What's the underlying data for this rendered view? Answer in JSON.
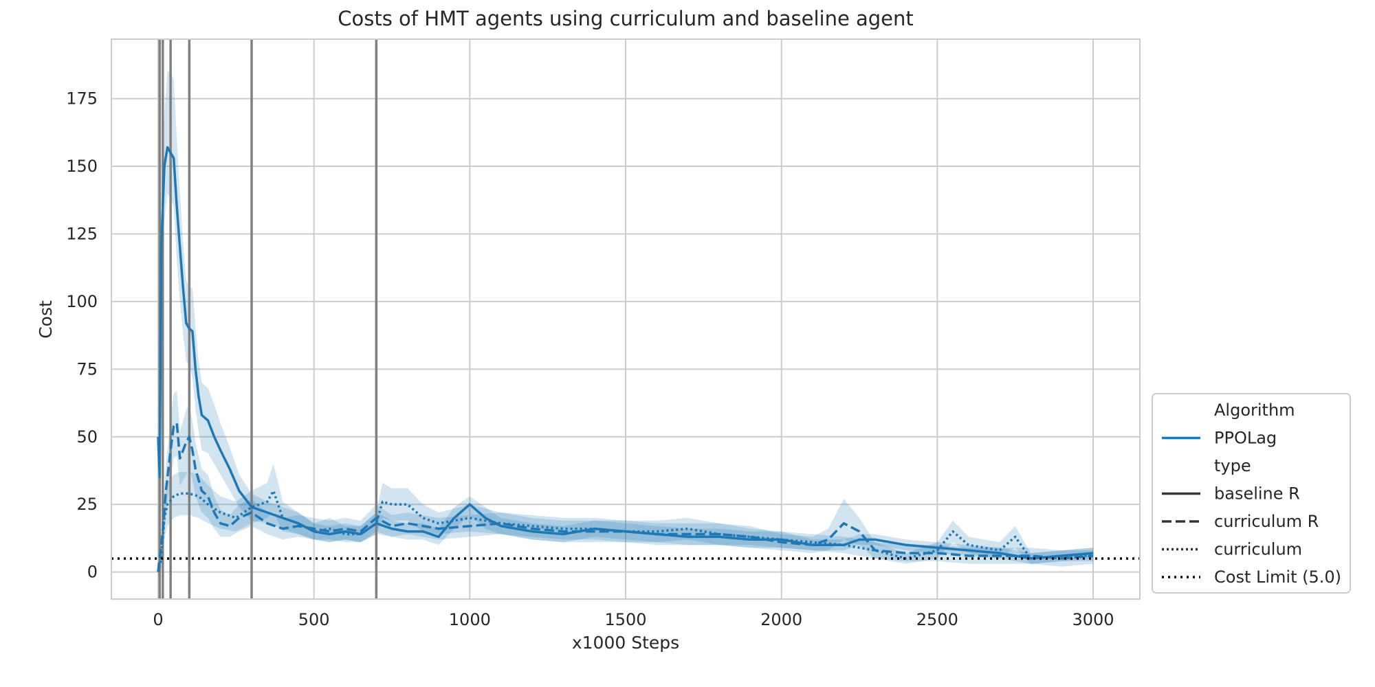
{
  "chart_data": {
    "type": "line",
    "title": "Costs of HMT agents using curriculum and baseline agent",
    "xlabel": "x1000 Steps",
    "ylabel": "Cost",
    "xlim": [
      -150,
      3150
    ],
    "ylim": [
      -10,
      197
    ],
    "xticks": [
      0,
      500,
      1000,
      1500,
      2000,
      2500,
      3000
    ],
    "yticks": [
      0,
      25,
      50,
      75,
      100,
      125,
      150,
      175
    ],
    "grid": true,
    "legend_placement": "lower-right outside",
    "colors": {
      "series": "#1f77b4",
      "band": "#1f77b4",
      "vline": "#808080",
      "limit": "#000000",
      "grid": "#cccccc"
    },
    "legend": {
      "items": [
        {
          "label": "Algorithm",
          "style": "header"
        },
        {
          "label": "PPOLag",
          "style": "solid-blue"
        },
        {
          "label": "type",
          "style": "header"
        },
        {
          "label": "baseline R",
          "style": "solid"
        },
        {
          "label": "curriculum R",
          "style": "dashed"
        },
        {
          "label": "curriculum",
          "style": "dotted"
        },
        {
          "label": "Cost Limit (5.0)",
          "style": "dotted-black"
        }
      ]
    },
    "cost_limit": 5.0,
    "vertical_lines": [
      5,
      15,
      40,
      100,
      300,
      700
    ],
    "series": [
      {
        "name": "baseline R",
        "dash": "solid",
        "x": [
          0,
          5,
          10,
          20,
          30,
          40,
          50,
          60,
          70,
          80,
          90,
          100,
          110,
          120,
          130,
          140,
          160,
          180,
          200,
          230,
          260,
          300,
          350,
          400,
          450,
          500,
          550,
          600,
          650,
          700,
          750,
          800,
          850,
          900,
          950,
          1000,
          1050,
          1100,
          1150,
          1200,
          1300,
          1400,
          1500,
          1600,
          1700,
          1800,
          1900,
          2000,
          2100,
          2200,
          2250,
          2300,
          2400,
          2500,
          2600,
          2700,
          2800,
          2900,
          3000
        ],
        "y": [
          50,
          35,
          120,
          150,
          157,
          155,
          153,
          135,
          120,
          105,
          92,
          90,
          89,
          75,
          65,
          58,
          56,
          50,
          45,
          38,
          30,
          24,
          22,
          20,
          18,
          15,
          14,
          15,
          14,
          18,
          16,
          15,
          15,
          13,
          20,
          25,
          20,
          17,
          16,
          15,
          14,
          16,
          15,
          14,
          13,
          13,
          12,
          12,
          10,
          10,
          12,
          12,
          10,
          9,
          8,
          7,
          5,
          6,
          7
        ],
        "lower": [
          48,
          30,
          100,
          130,
          140,
          138,
          135,
          115,
          100,
          88,
          78,
          76,
          72,
          60,
          52,
          45,
          44,
          40,
          36,
          30,
          24,
          19,
          18,
          16,
          14,
          12,
          11,
          12,
          11,
          14,
          13,
          12,
          12,
          10,
          16,
          21,
          16,
          14,
          13,
          12,
          11,
          13,
          12,
          11,
          10,
          10,
          9,
          9,
          8,
          8,
          10,
          10,
          8,
          7,
          6,
          5,
          3,
          4,
          5
        ],
        "upper": [
          52,
          40,
          135,
          170,
          185,
          185,
          182,
          160,
          140,
          122,
          108,
          105,
          105,
          90,
          78,
          70,
          68,
          62,
          55,
          46,
          36,
          29,
          26,
          24,
          22,
          18,
          17,
          18,
          17,
          22,
          19,
          18,
          18,
          16,
          24,
          28,
          24,
          20,
          19,
          18,
          17,
          19,
          18,
          17,
          16,
          16,
          15,
          15,
          12,
          12,
          14,
          14,
          12,
          11,
          10,
          9,
          7,
          8,
          9
        ]
      },
      {
        "name": "curriculum R",
        "dash": "dashed",
        "x": [
          0,
          5,
          15,
          25,
          40,
          50,
          60,
          70,
          80,
          90,
          100,
          110,
          120,
          140,
          160,
          180,
          200,
          230,
          260,
          300,
          350,
          400,
          450,
          500,
          550,
          600,
          650,
          700,
          750,
          800,
          900,
          1000,
          1100,
          1200,
          1300,
          1400,
          1500,
          1600,
          1700,
          1800,
          1900,
          2000,
          2100,
          2150,
          2200,
          2250,
          2300,
          2400,
          2500,
          2600,
          2700,
          2800,
          2900,
          3000
        ],
        "y": [
          0,
          5,
          15,
          30,
          45,
          54,
          55,
          42,
          45,
          48,
          50,
          45,
          38,
          30,
          28,
          22,
          18,
          17,
          20,
          22,
          18,
          16,
          17,
          16,
          15,
          16,
          15,
          20,
          17,
          18,
          16,
          17,
          18,
          16,
          15,
          15,
          15,
          14,
          14,
          14,
          13,
          11,
          10,
          12,
          18,
          15,
          8,
          7,
          7,
          6,
          6,
          6,
          5,
          6
        ],
        "lower": [
          -2,
          2,
          8,
          20,
          34,
          42,
          43,
          32,
          34,
          36,
          38,
          34,
          28,
          22,
          20,
          16,
          13,
          13,
          15,
          17,
          14,
          12,
          13,
          12,
          11,
          12,
          11,
          15,
          13,
          14,
          12,
          13,
          14,
          12,
          11,
          11,
          11,
          10,
          10,
          10,
          9,
          8,
          7,
          8,
          12,
          10,
          5,
          4,
          4,
          3,
          3,
          3,
          2,
          3
        ],
        "upper": [
          2,
          8,
          22,
          40,
          56,
          66,
          67,
          52,
          56,
          60,
          62,
          56,
          48,
          38,
          36,
          28,
          23,
          21,
          25,
          27,
          22,
          20,
          21,
          20,
          19,
          20,
          19,
          25,
          21,
          22,
          20,
          21,
          22,
          20,
          19,
          19,
          19,
          18,
          18,
          18,
          17,
          14,
          13,
          16,
          27,
          20,
          11,
          10,
          10,
          9,
          9,
          9,
          8,
          9
        ]
      },
      {
        "name": "curriculum",
        "dash": "dotted",
        "x": [
          0,
          10,
          20,
          30,
          50,
          70,
          100,
          130,
          160,
          200,
          250,
          300,
          350,
          370,
          400,
          450,
          500,
          550,
          600,
          650,
          700,
          720,
          750,
          800,
          850,
          900,
          1000,
          1100,
          1200,
          1300,
          1400,
          1500,
          1600,
          1700,
          1800,
          1900,
          2000,
          2100,
          2200,
          2300,
          2400,
          2500,
          2550,
          2600,
          2700,
          2750,
          2800,
          2900,
          3000
        ],
        "y": [
          0,
          5,
          20,
          25,
          28,
          29,
          29,
          28,
          25,
          22,
          20,
          24,
          26,
          30,
          20,
          18,
          15,
          16,
          14,
          14,
          18,
          26,
          25,
          25,
          20,
          18,
          20,
          18,
          17,
          16,
          16,
          15,
          15,
          16,
          14,
          13,
          12,
          11,
          10,
          8,
          5,
          8,
          15,
          10,
          8,
          13,
          5,
          6,
          6
        ],
        "lower": [
          -2,
          1,
          12,
          17,
          20,
          21,
          21,
          20,
          18,
          16,
          15,
          18,
          20,
          22,
          15,
          14,
          12,
          12,
          11,
          11,
          14,
          20,
          19,
          19,
          15,
          14,
          15,
          14,
          13,
          12,
          12,
          11,
          11,
          12,
          10,
          10,
          9,
          8,
          7,
          5,
          3,
          5,
          11,
          7,
          5,
          9,
          3,
          4,
          4
        ],
        "upper": [
          2,
          9,
          28,
          33,
          36,
          37,
          37,
          36,
          32,
          28,
          26,
          30,
          33,
          40,
          26,
          22,
          18,
          20,
          17,
          17,
          22,
          33,
          31,
          31,
          25,
          22,
          25,
          22,
          21,
          20,
          20,
          19,
          19,
          20,
          18,
          16,
          15,
          14,
          13,
          11,
          7,
          11,
          19,
          13,
          11,
          17,
          7,
          8,
          8
        ]
      }
    ]
  }
}
